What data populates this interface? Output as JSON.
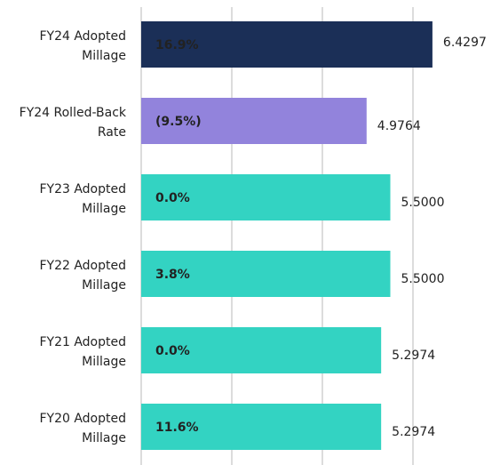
{
  "chart_data": {
    "type": "barh",
    "categories": [
      "FY24 Adopted Millage",
      "FY24 Rolled-Back Rate",
      "FY23 Adopted Millage",
      "FY22 Adopted Millage",
      "FY21 Adopted Millage",
      "FY20 Adopted Millage"
    ],
    "values": [
      6.4297,
      4.9764,
      5.5,
      5.5,
      5.2974,
      5.2974
    ],
    "value_labels": [
      "6.4297",
      "4.9764",
      "5.5000",
      "5.5000",
      "5.2974",
      "5.2974"
    ],
    "annotations": [
      "16.9%",
      "(9.5%)",
      "0.0%",
      "3.8%",
      "0.0%",
      "11.6%"
    ],
    "colors": [
      "#1b2f57",
      "#9283dc",
      "#33d3c2",
      "#33d3c2",
      "#33d3c2",
      "#33d3c2"
    ],
    "xlim": [
      0,
      7.5
    ],
    "xticks": [
      0,
      2,
      4,
      6
    ],
    "grid": true
  }
}
